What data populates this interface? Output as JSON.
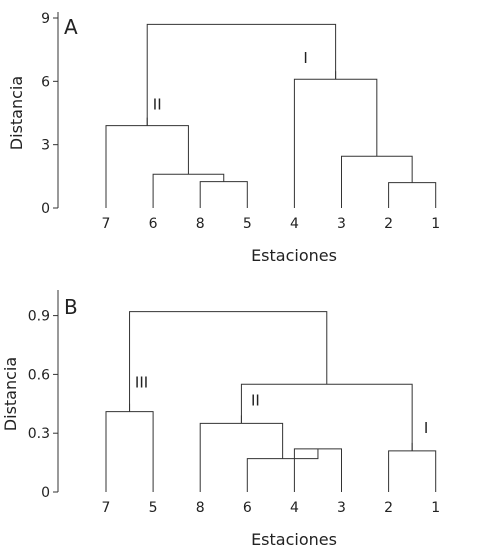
{
  "chart_data": [
    {
      "type": "dendrogram",
      "panel": "A",
      "xlabel": "Estaciones",
      "ylabel": "Distancia",
      "ylim": [
        0,
        9
      ],
      "yticks": [
        0,
        3,
        6,
        9
      ],
      "leaves": [
        "7",
        "6",
        "8",
        "5",
        "4",
        "3",
        "2",
        "1"
      ],
      "merges": [
        {
          "left": "8",
          "right": "5",
          "height": 1.25
        },
        {
          "left": "6",
          "right": "m1",
          "height": 1.6
        },
        {
          "left": "7",
          "right": "m2",
          "height": 3.9,
          "label": "II"
        },
        {
          "left": "2",
          "right": "1",
          "height": 1.2
        },
        {
          "left": "3",
          "right": "m4",
          "height": 2.45
        },
        {
          "left": "4",
          "right": "m5",
          "height": 6.1,
          "label": "I"
        },
        {
          "left": "m3",
          "right": "m6",
          "height": 8.7
        }
      ]
    },
    {
      "type": "dendrogram",
      "panel": "B",
      "xlabel": "Estaciones",
      "ylabel": "Distancia",
      "ylim": [
        0,
        1.0
      ],
      "yticks": [
        0,
        0.3,
        0.6,
        0.9
      ],
      "ytick_labels": [
        "0",
        "0.3",
        "0.6",
        "0.9"
      ],
      "leaves": [
        "7",
        "5",
        "8",
        "6",
        "4",
        "3",
        "2",
        "1"
      ],
      "merges": [
        {
          "left": "7",
          "right": "5",
          "height": 0.41,
          "label": "III"
        },
        {
          "left": "4",
          "right": "3",
          "height": 0.22
        },
        {
          "left": "6",
          "right": "m2",
          "height": 0.17
        },
        {
          "left": "8",
          "right": "m3",
          "height": 0.35,
          "label": "II"
        },
        {
          "left": "2",
          "right": "1",
          "height": 0.21,
          "label": "I"
        },
        {
          "left": "m4",
          "right": "m5",
          "height": 0.55
        },
        {
          "left": "m1",
          "right": "m6",
          "height": 0.92
        }
      ]
    }
  ]
}
